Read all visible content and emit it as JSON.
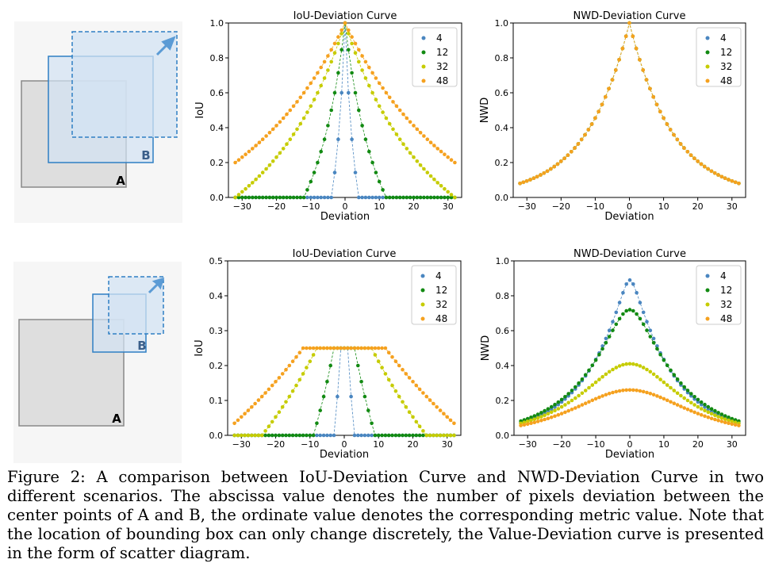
{
  "colors": {
    "s4": "#4a86c0",
    "s12": "#128a12",
    "s32": "#c6cc00",
    "s48": "#f5a11f",
    "boxA_fill": "#dedede",
    "boxA_stroke": "#888888",
    "boxB_fill": "#d3e3f3",
    "boxB_stroke": "#2f7fc4"
  },
  "diagrams": [
    {
      "label_a": "A",
      "label_b": "B"
    },
    {
      "label_a": "A",
      "label_b": "B"
    }
  ],
  "chart_data": [
    {
      "id": "top-iou",
      "type": "scatter",
      "title": "IoU-Deviation Curve",
      "xlabel": "Deviation",
      "ylabel": "IoU",
      "xlim": [
        -34,
        34
      ],
      "ylim": [
        0,
        1.0
      ],
      "xticks": [
        -30,
        -20,
        -10,
        0,
        10,
        20,
        30
      ],
      "yticks": [
        0.0,
        0.2,
        0.4,
        0.6,
        0.8,
        1.0
      ],
      "legend": "top-right",
      "x_range": [
        -32,
        32
      ],
      "series": [
        {
          "name": "4",
          "values_peak": 1.0
        },
        {
          "name": "12",
          "values_peak": 1.0
        },
        {
          "name": "32",
          "values_peak": 1.0
        },
        {
          "name": "48",
          "values_peak": 1.0
        }
      ],
      "model": "iou_same_size",
      "sizes": [
        4,
        12,
        32,
        48
      ]
    },
    {
      "id": "top-nwd",
      "type": "scatter",
      "title": "NWD-Deviation Curve",
      "xlabel": "Deviation",
      "ylabel": "NWD",
      "xlim": [
        -34,
        34
      ],
      "ylim": [
        0,
        1.0
      ],
      "xticks": [
        -30,
        -20,
        -10,
        0,
        10,
        20,
        30
      ],
      "yticks": [
        0.0,
        0.2,
        0.4,
        0.6,
        0.8,
        1.0
      ],
      "legend": "top-right",
      "x_range": [
        -32,
        32
      ],
      "series": [
        {
          "name": "4",
          "values_peak": 1.0
        },
        {
          "name": "12",
          "values_peak": 1.0
        },
        {
          "name": "32",
          "values_peak": 1.0
        },
        {
          "name": "48",
          "values_peak": 1.0
        }
      ],
      "model": "nwd_same_size",
      "sizes": [
        4,
        12,
        32,
        48
      ],
      "value_at_32": 0.08
    },
    {
      "id": "bottom-iou",
      "type": "scatter",
      "title": "IoU-Deviation Curve",
      "xlabel": "Deviation",
      "ylabel": "IoU",
      "xlim": [
        -34,
        34
      ],
      "ylim": [
        0,
        0.5
      ],
      "xticks": [
        -30,
        -20,
        -10,
        0,
        10,
        20,
        30
      ],
      "yticks": [
        0.0,
        0.1,
        0.2,
        0.3,
        0.4,
        0.5
      ],
      "legend": "top-right",
      "x_range": [
        -32,
        32
      ],
      "series": [
        {
          "name": "4",
          "plateau": 0.25
        },
        {
          "name": "12",
          "plateau": 0.25
        },
        {
          "name": "32",
          "plateau": 0.25
        },
        {
          "name": "48",
          "plateau": 0.25
        }
      ],
      "model": "iou_half_size",
      "sizes": [
        4,
        12,
        32,
        48
      ]
    },
    {
      "id": "bottom-nwd",
      "type": "scatter",
      "title": "NWD-Deviation Curve",
      "xlabel": "Deviation",
      "ylabel": "NWD",
      "xlim": [
        -34,
        34
      ],
      "ylim": [
        0,
        1.0
      ],
      "xticks": [
        -30,
        -20,
        -10,
        0,
        10,
        20,
        30
      ],
      "yticks": [
        0.0,
        0.2,
        0.4,
        0.6,
        0.8,
        1.0
      ],
      "legend": "top-right",
      "x_range": [
        -32,
        32
      ],
      "series": [
        {
          "name": "4",
          "peak": 0.89
        },
        {
          "name": "12",
          "peak": 0.72
        },
        {
          "name": "32",
          "peak": 0.41
        },
        {
          "name": "48",
          "peak": 0.26
        }
      ],
      "model": "nwd_half_size",
      "sizes": [
        4,
        12,
        32,
        48
      ]
    }
  ],
  "caption": "Figure 2: A comparison between IoU-Deviation Curve and NWD-Deviation Curve in two different scenarios. The abscissa value denotes the number of pixels deviation between the center points of A and B, the ordinate value denotes the corresponding metric value. Note that the location of bounding box can only change discretely, the Value-Deviation curve is presented in the form of scatter diagram."
}
